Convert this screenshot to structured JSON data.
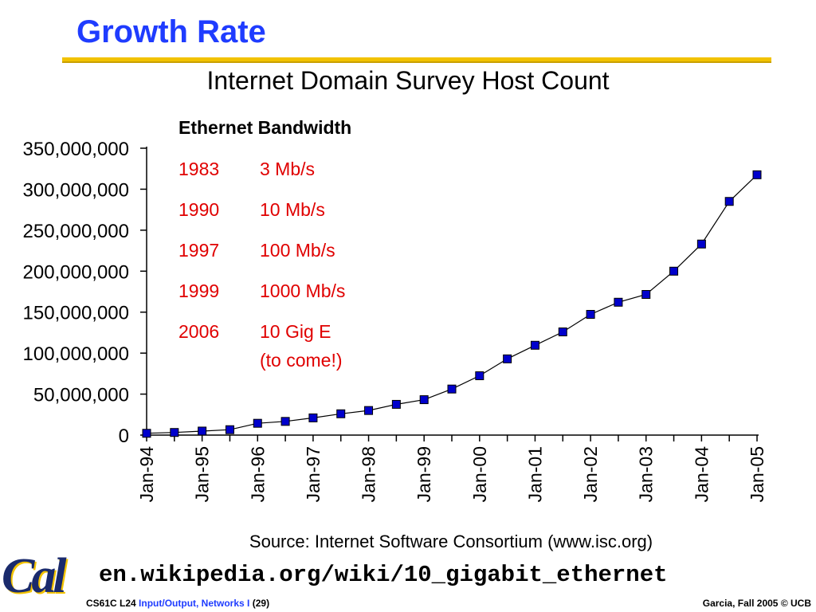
{
  "slide": {
    "title": "Growth Rate",
    "url": "en.wikipedia.org/wiki/10_gigabit_ethernet",
    "footer_course": "CS61C L24",
    "footer_lecture": "Input/Output, Networks I",
    "footer_page": "(29)",
    "footer_right": "Garcia, Fall 2005 © UCB",
    "logo_text": "Cal",
    "colors": {
      "title": "#1f3cff",
      "rule": "#f2c200",
      "marker": "#0000cc",
      "annotation": "#e00000"
    }
  },
  "chart_data": {
    "type": "line",
    "title": "Internet Domain Survey Host Count",
    "source": "Source: Internet Software Consortium (www.isc.org)",
    "xlabel": "",
    "ylabel": "",
    "ylim": [
      0,
      350000000
    ],
    "y_ticks": [
      0,
      50000000,
      100000000,
      150000000,
      200000000,
      250000000,
      300000000,
      350000000
    ],
    "y_tick_labels": [
      "0",
      "50,000,000",
      "100,000,000",
      "150,000,000",
      "200,000,000",
      "250,000,000",
      "300,000,000",
      "350,000,000"
    ],
    "x_tick_labels": [
      "Jan-94",
      "Jan-95",
      "Jan-96",
      "Jan-97",
      "Jan-98",
      "Jan-99",
      "Jan-00",
      "Jan-01",
      "Jan-02",
      "Jan-03",
      "Jan-04",
      "Jan-05"
    ],
    "x_range": [
      1994.0,
      2005.0
    ],
    "grid": false,
    "points": [
      {
        "x": 1994.0,
        "y": 2200000
      },
      {
        "x": 1994.5,
        "y": 3200000
      },
      {
        "x": 1995.0,
        "y": 4900000
      },
      {
        "x": 1995.5,
        "y": 6600000
      },
      {
        "x": 1996.0,
        "y": 14400000
      },
      {
        "x": 1996.5,
        "y": 16700000
      },
      {
        "x": 1997.0,
        "y": 21000000
      },
      {
        "x": 1997.5,
        "y": 26000000
      },
      {
        "x": 1998.0,
        "y": 30000000
      },
      {
        "x": 1998.5,
        "y": 37500000
      },
      {
        "x": 1999.0,
        "y": 43200000
      },
      {
        "x": 1999.5,
        "y": 56200000
      },
      {
        "x": 2000.0,
        "y": 72400000
      },
      {
        "x": 2000.5,
        "y": 93000000
      },
      {
        "x": 2001.0,
        "y": 109600000
      },
      {
        "x": 2001.5,
        "y": 125900000
      },
      {
        "x": 2002.0,
        "y": 147300000
      },
      {
        "x": 2002.5,
        "y": 162100000
      },
      {
        "x": 2003.0,
        "y": 171600000
      },
      {
        "x": 2003.5,
        "y": 200000000
      },
      {
        "x": 2004.0,
        "y": 233100000
      },
      {
        "x": 2004.5,
        "y": 285100000
      },
      {
        "x": 2005.0,
        "y": 317600000
      }
    ],
    "annotation": {
      "heading": "Ethernet Bandwidth",
      "rows": [
        {
          "year": "1983",
          "speed": "3 Mb/s"
        },
        {
          "year": "1990",
          "speed": "10 Mb/s"
        },
        {
          "year": "1997",
          "speed": "100 Mb/s"
        },
        {
          "year": "1999",
          "speed": "1000 Mb/s"
        },
        {
          "year": "2006",
          "speed": "10 Gig E",
          "note": "(to come!)"
        }
      ]
    }
  }
}
